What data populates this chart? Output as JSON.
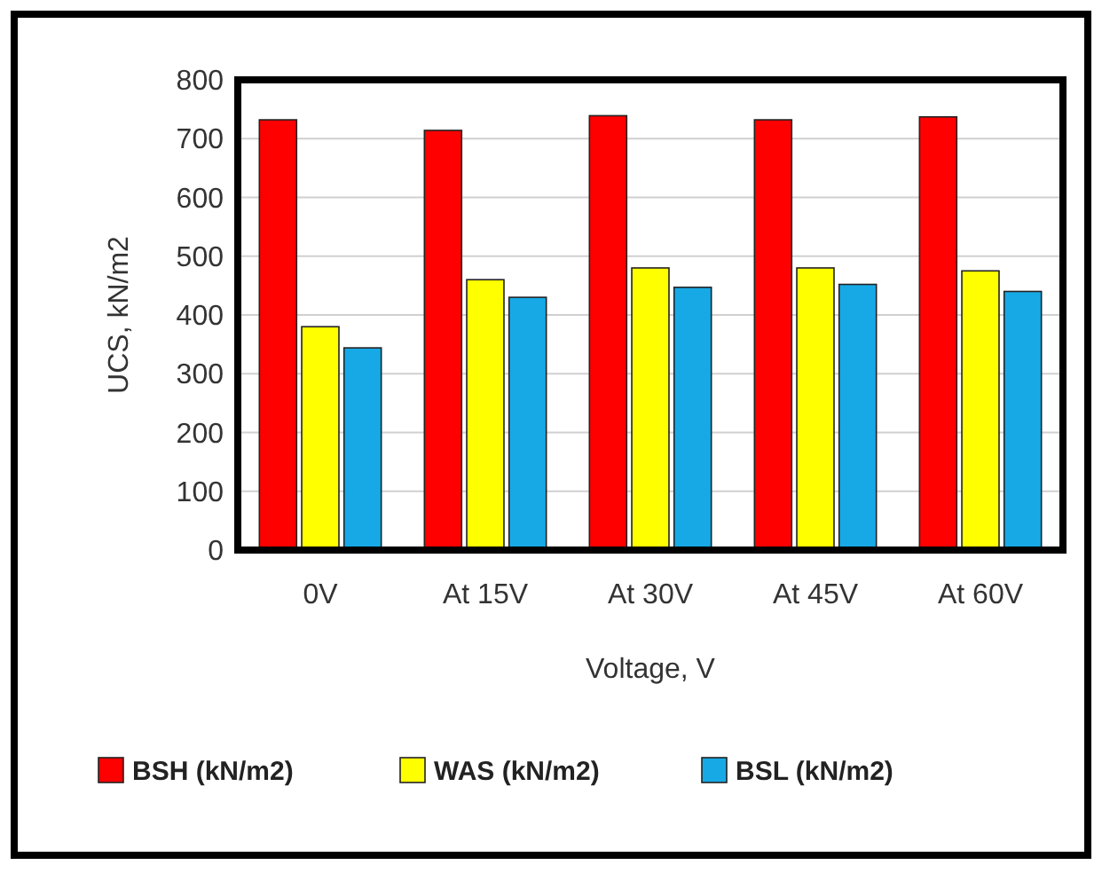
{
  "chart_data": {
    "type": "bar",
    "xlabel": "Voltage, V",
    "ylabel": "UCS, kN/m2",
    "categories": [
      "0V",
      "At 15V",
      "At 30V",
      "At 45V",
      "At 60V"
    ],
    "series": [
      {
        "name": "BSH (kN/m2)",
        "color": "#ff0000",
        "values": [
          732,
          714,
          739,
          732,
          737
        ]
      },
      {
        "name": "WAS (kN/m2)",
        "color": "#ffff00",
        "values": [
          380,
          460,
          480,
          480,
          475
        ]
      },
      {
        "name": "BSL (kN/m2)",
        "color": "#17a9e6",
        "values": [
          344,
          430,
          447,
          452,
          440
        ]
      }
    ],
    "ylim": [
      0,
      800
    ],
    "yticks": [
      0,
      100,
      200,
      300,
      400,
      500,
      600,
      700,
      800
    ],
    "grid": "y",
    "legend": "bottom"
  }
}
